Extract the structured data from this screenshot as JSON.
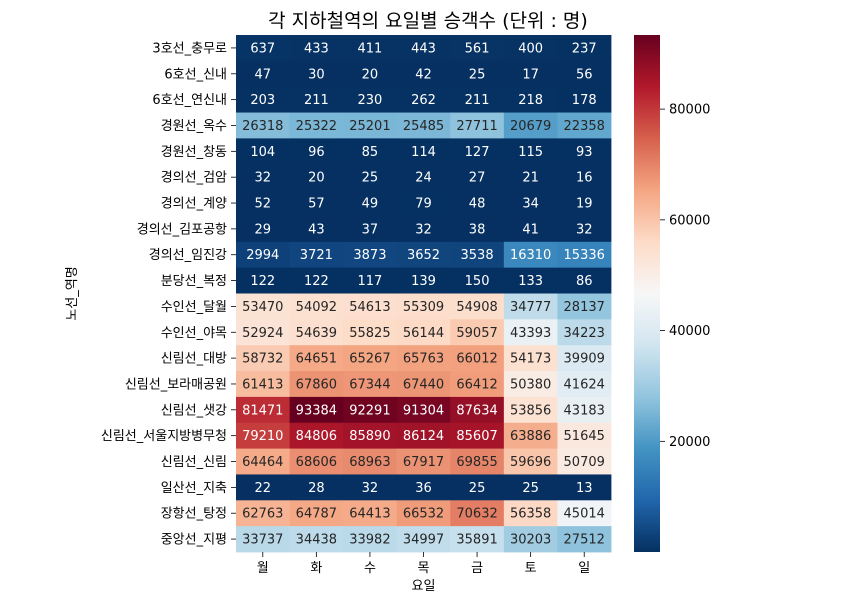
{
  "chart_data": {
    "type": "heatmap",
    "title": "각 지하철역의 요일별 승객수 (단위 : 명)",
    "xlabel": "요일",
    "ylabel": "노선_역명",
    "x_categories": [
      "월",
      "화",
      "수",
      "목",
      "금",
      "토",
      "일"
    ],
    "y_categories": [
      "3호선_충무로",
      "6호선_신내",
      "6호선_연신내",
      "경원선_옥수",
      "경원선_창동",
      "경의선_검암",
      "경의선_계양",
      "경의선_김포공항",
      "경의선_임진강",
      "분당선_복정",
      "수인선_달월",
      "수인선_야목",
      "신림선_대방",
      "신림선_보라매공원",
      "신림선_샛강",
      "신림선_서울지방병무청",
      "신림선_신림",
      "일산선_지축",
      "장항선_탕정",
      "중앙선_지평"
    ],
    "values": [
      [
        637,
        433,
        411,
        443,
        561,
        400,
        237
      ],
      [
        47,
        30,
        20,
        42,
        25,
        17,
        56
      ],
      [
        203,
        211,
        230,
        262,
        211,
        218,
        178
      ],
      [
        26318,
        25322,
        25201,
        25485,
        27711,
        20679,
        22358
      ],
      [
        104,
        96,
        85,
        114,
        127,
        115,
        93
      ],
      [
        32,
        20,
        25,
        24,
        27,
        21,
        16
      ],
      [
        52,
        57,
        49,
        79,
        48,
        34,
        19
      ],
      [
        29,
        43,
        37,
        32,
        38,
        41,
        32
      ],
      [
        2994,
        3721,
        3873,
        3652,
        3538,
        16310,
        15336
      ],
      [
        122,
        122,
        117,
        139,
        150,
        133,
        86
      ],
      [
        53470,
        54092,
        54613,
        55309,
        54908,
        34777,
        28137
      ],
      [
        52924,
        54639,
        55825,
        56144,
        59057,
        43393,
        34223
      ],
      [
        58732,
        64651,
        65267,
        65763,
        66012,
        54173,
        39909
      ],
      [
        61413,
        67860,
        67344,
        67440,
        66412,
        50380,
        41624
      ],
      [
        81471,
        93384,
        92291,
        91304,
        87634,
        53856,
        43183
      ],
      [
        79210,
        84806,
        85890,
        86124,
        85607,
        63886,
        51645
      ],
      [
        64464,
        68606,
        68963,
        67917,
        69855,
        59696,
        50709
      ],
      [
        22,
        28,
        32,
        36,
        25,
        25,
        13
      ],
      [
        62763,
        64787,
        64413,
        66532,
        70632,
        56358,
        45014
      ],
      [
        33737,
        34438,
        33982,
        34997,
        35891,
        30203,
        27512
      ]
    ],
    "color_range": [
      13,
      93384
    ],
    "colormap": "RdBu_r",
    "colorbar_ticks": [
      20000,
      40000,
      60000,
      80000
    ],
    "annotations": true
  }
}
